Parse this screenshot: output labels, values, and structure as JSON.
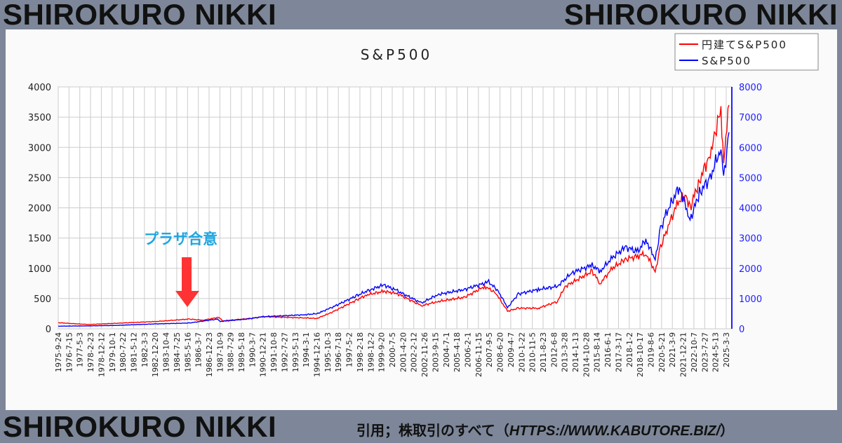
{
  "brand": "SHIROKURO NIKKI",
  "citation": {
    "prefix": "引用；株取引のすべて（",
    "url": "HTTPS://WWW.KABUTORE.BIZ/",
    "suffix": "）"
  },
  "annotation": {
    "label": "プラザ合意",
    "color": "#1ea6e0",
    "arrow_color": "#ff3333"
  },
  "chart_data": {
    "type": "line",
    "title": "S&P500",
    "legend": {
      "placement": "top-right",
      "entries": [
        "円建てS&P500",
        "S&P500"
      ]
    },
    "y_left": {
      "range": [
        0,
        4000
      ],
      "ticks": [
        0,
        500,
        1000,
        1500,
        2000,
        2500,
        3000,
        3500,
        4000
      ]
    },
    "y_right": {
      "range": [
        0,
        8000
      ],
      "ticks": [
        0,
        1000,
        2000,
        3000,
        4000,
        5000,
        6000,
        7000,
        8000
      ],
      "color": "#2020ff"
    },
    "x_range": [
      1975.73,
      2025.7
    ],
    "x_tick_labels": [
      "1975-9-24",
      "1976-7-15",
      "1977-5-3",
      "1978-2-23",
      "1978-12-12",
      "1979-10-1",
      "1980-7-22",
      "1981-5-12",
      "1982-3-3",
      "1982-12-20",
      "1983-10-4",
      "1984-7-25",
      "1985-5-16",
      "1986-3-7",
      "1986-12-23",
      "1987-10-9",
      "1988-7-29",
      "1989-5-18",
      "1990-3-7",
      "1990-12-21",
      "1991-10-8",
      "1992-7-27",
      "1993-5-13",
      "1994-3-1",
      "1994-12-16",
      "1995-10-3",
      "1996-7-18",
      "1997-5-2",
      "1998-2-18",
      "1998-12-2",
      "1999-9-20",
      "2000-7-5",
      "2001-4-20",
      "2002-2-12",
      "2002-11-26",
      "2003-9-15",
      "2004-7-1",
      "2005-4-18",
      "2006-2-1",
      "2006-11-15",
      "2007-9-5",
      "2008-6-20",
      "2009-4-7",
      "2010-1-22",
      "2010-11-5",
      "2011-8-23",
      "2012-6-8",
      "2013-3-28",
      "2014-1-13",
      "2014-10-28",
      "2015-8-14",
      "2016-6-1",
      "2017-3-17",
      "2018-1-2",
      "2018-10-17",
      "2019-8-6",
      "2020-5-21",
      "2021-3-9",
      "2021-12-21",
      "2022-10-7",
      "2023-7-27",
      "2024-5-13",
      "2025-3-3"
    ],
    "series": [
      {
        "name": "円建てS&P500",
        "axis": "left",
        "color": "#ff0000",
        "x": [
          1975.73,
          1978,
          1980,
          1983,
          1985.5,
          1986.5,
          1987.7,
          1988,
          1990,
          1991,
          1994,
          1995,
          1996,
          1998,
          1998.7,
          2000,
          2001,
          2002.8,
          2004,
          2006,
          2007.5,
          2008.3,
          2009.2,
          2010,
          2011.5,
          2012.9,
          2013.5,
          2015.5,
          2016.1,
          2017,
          2018,
          2018.9,
          2019.5,
          2020.2,
          2020.6,
          2021,
          2021.9,
          2022.5,
          2022.8,
          2023.5,
          2024.3,
          2024.6,
          2025.1,
          2025.3,
          2025.7
        ],
        "y": [
          100,
          70,
          90,
          120,
          160,
          140,
          190,
          130,
          170,
          200,
          180,
          170,
          260,
          480,
          560,
          620,
          580,
          380,
          450,
          520,
          700,
          600,
          290,
          340,
          340,
          450,
          700,
          950,
          750,
          1000,
          1150,
          1200,
          1250,
          950,
          1350,
          1600,
          2100,
          2200,
          2000,
          2450,
          2900,
          3200,
          3600,
          2800,
          3700
        ]
      },
      {
        "name": "S&P500",
        "axis": "right",
        "color": "#0000ff",
        "x": [
          1975.73,
          1978,
          1980,
          1983,
          1985.5,
          1987.6,
          1987.8,
          1990,
          1991,
          1994,
          1995,
          1996,
          1998,
          1999,
          2000,
          2001,
          2002.8,
          2004,
          2006,
          2007.8,
          2008.5,
          2009.2,
          2010,
          2011.5,
          2012.9,
          2014,
          2015.5,
          2016.1,
          2017,
          2018,
          2018.9,
          2019.5,
          2020.2,
          2020.6,
          2021,
          2022,
          2022.8,
          2023.5,
          2024.3,
          2025.1,
          2025.3,
          2025.7
        ],
        "y": [
          85,
          95,
          110,
          160,
          190,
          320,
          240,
          330,
          400,
          460,
          500,
          680,
          1100,
          1300,
          1450,
          1250,
          850,
          1130,
          1300,
          1550,
          1250,
          700,
          1150,
          1300,
          1400,
          1850,
          2100,
          1900,
          2350,
          2700,
          2550,
          2950,
          2300,
          3300,
          3800,
          4700,
          3600,
          4500,
          5000,
          6000,
          5000,
          6500
        ]
      }
    ]
  }
}
